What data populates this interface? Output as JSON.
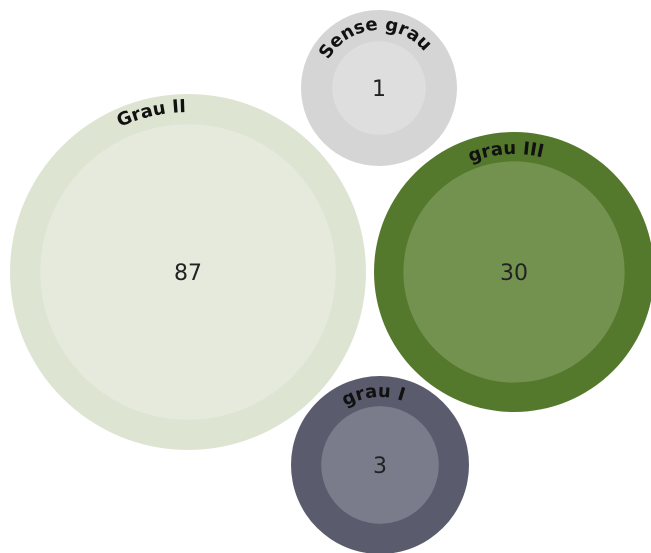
{
  "chart_data": {
    "type": "bubble",
    "title": "",
    "series": [
      {
        "name": "Grau II",
        "value": 87,
        "color_outer": "#dde5d2",
        "color_inner": "#e5eadc"
      },
      {
        "name": "grau III",
        "value": 30,
        "color_outer": "#54792c",
        "color_inner": "#74924f"
      },
      {
        "name": "grau I",
        "value": 3,
        "color_outer": "#5a5c6e",
        "color_inner": "#7b7c8b"
      },
      {
        "name": "Sense grau",
        "value": 1,
        "color_outer": "#d5d5d5",
        "color_inner": "#dedede"
      }
    ]
  }
}
